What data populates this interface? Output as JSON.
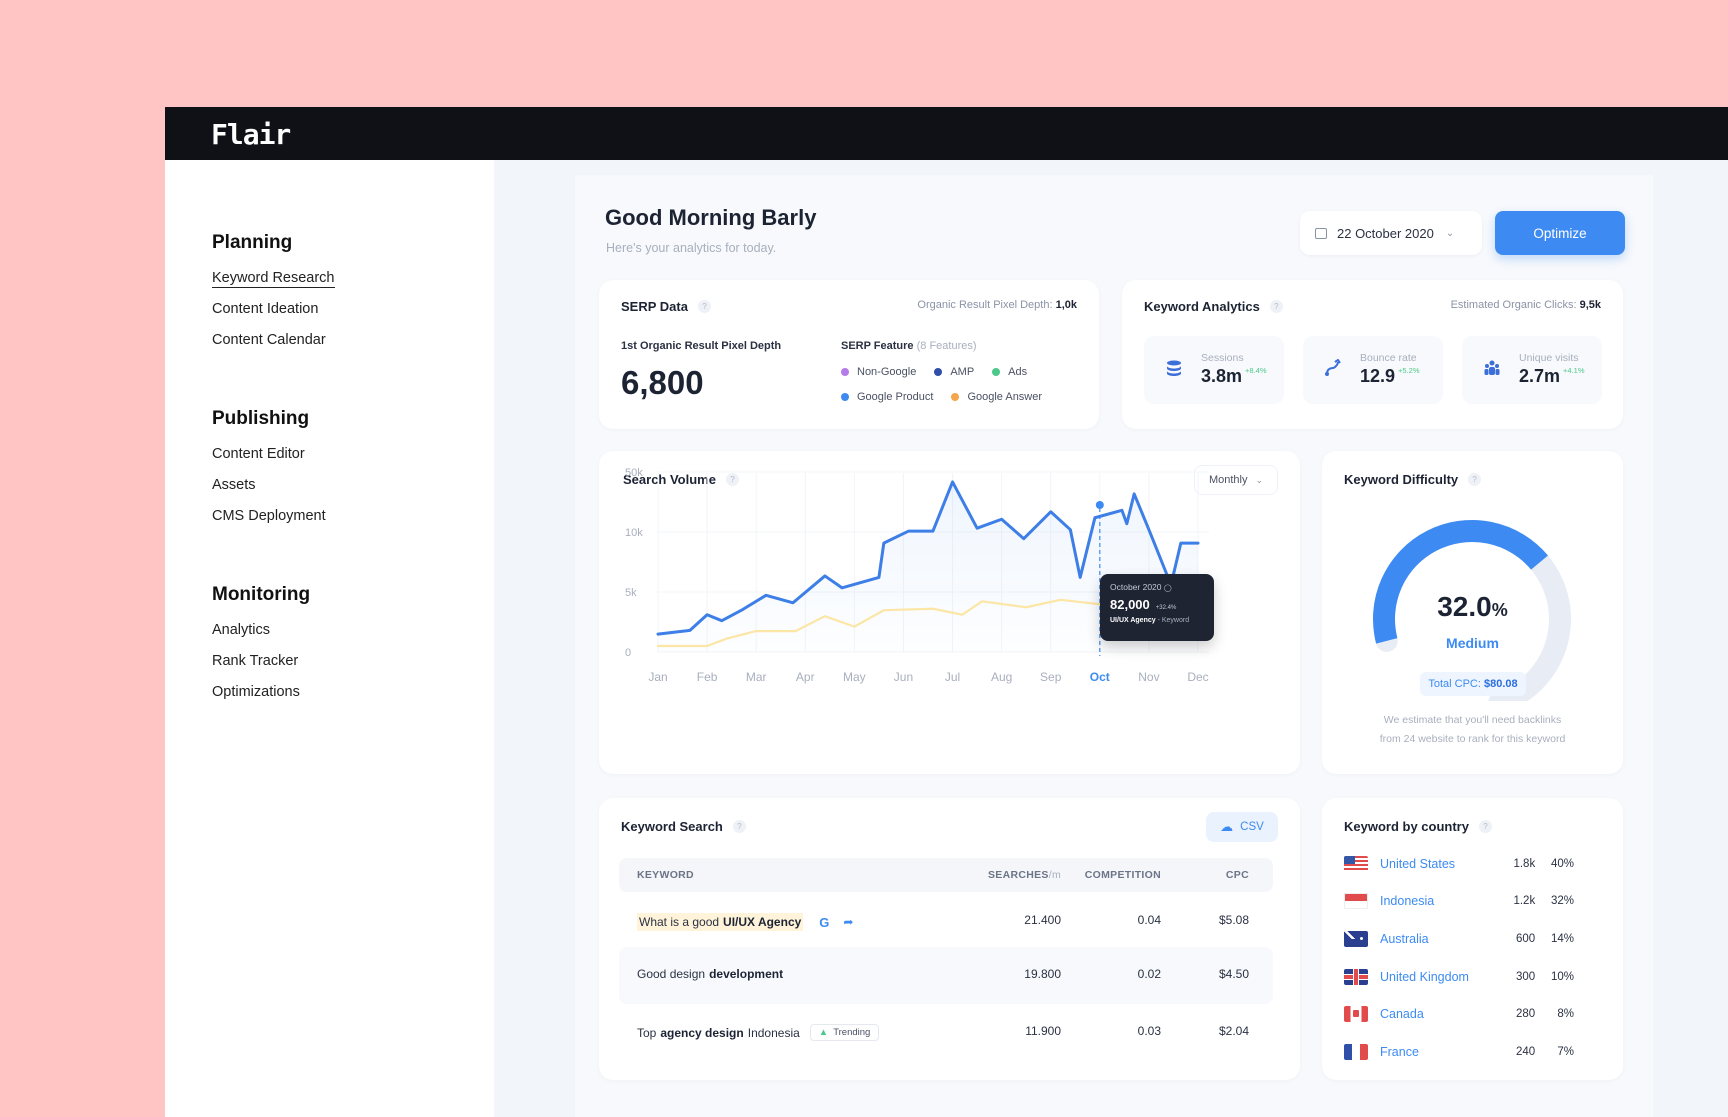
{
  "app": {
    "brand": "Flair"
  },
  "sidebar": {
    "sections": [
      {
        "title": "Planning",
        "items": [
          "Keyword Research",
          "Content Ideation",
          "Content Calendar"
        ]
      },
      {
        "title": "Publishing",
        "items": [
          "Content Editor",
          "Assets",
          "CMS Deployment"
        ]
      },
      {
        "title": "Monitoring",
        "items": [
          "Analytics",
          "Rank Tracker",
          "Optimizations"
        ]
      }
    ]
  },
  "header": {
    "greeting": "Good Morning Barly",
    "subtitle": "Here's your analytics for today.",
    "date": "22 October 2020",
    "optimize_label": "Optimize"
  },
  "serp": {
    "title": "SERP Data",
    "meta_label": "Organic Result Pixel Depth:",
    "meta_value": "1,0k",
    "depth_label": "1st Organic Result Pixel Depth",
    "depth_value": "6,800",
    "feature_title": "SERP Feature",
    "feature_count": "(8 Features)",
    "features": [
      {
        "name": "Non-Google",
        "color": "#b57be8"
      },
      {
        "name": "AMP",
        "color": "#2f4fa8"
      },
      {
        "name": "Ads",
        "color": "#4cc98a"
      },
      {
        "name": "Google Product",
        "color": "#3d8bf2"
      },
      {
        "name": "Google Answer",
        "color": "#f5a54a"
      }
    ]
  },
  "keyword_analytics": {
    "title": "Keyword Analytics",
    "meta_label": "Estimated Organic Clicks:",
    "meta_value": "9,5k",
    "tiles": [
      {
        "label": "Sessions",
        "value": "3.8m",
        "change": "+8.4%",
        "icon": "database-icon"
      },
      {
        "label": "Bounce rate",
        "value": "12.9",
        "change": "+5.2%",
        "icon": "bounce-arrow-icon"
      },
      {
        "label": "Unique visits",
        "value": "2.7m",
        "change": "+4.1%",
        "icon": "users-icon"
      }
    ]
  },
  "search_volume": {
    "title": "Search Volume",
    "period": "Monthly",
    "tooltip": {
      "date": "October 2020",
      "value": "82,000",
      "change": "+32.4%",
      "keyword_bold": "UI/UX Agency",
      "keyword_rest": "- Keyword"
    }
  },
  "chart_data": {
    "type": "line",
    "categories": [
      "Jan",
      "Feb",
      "Mar",
      "Apr",
      "May",
      "Jun",
      "Jul",
      "Aug",
      "Sep",
      "Oct",
      "Nov",
      "Dec"
    ],
    "y_ticks": [
      "0",
      "5k",
      "10k",
      "50k"
    ],
    "highlight_category": "Oct",
    "series": [
      {
        "color": "#3d7fe6",
        "points": [
          [
            0,
            1.2
          ],
          [
            0.65,
            1.45
          ],
          [
            1,
            2.5
          ],
          [
            1.3,
            2.1
          ],
          [
            1.7,
            2.8
          ],
          [
            2.2,
            3.8
          ],
          [
            2.75,
            3.3
          ],
          [
            3.4,
            5.1
          ],
          [
            3.75,
            4.3
          ],
          [
            4.5,
            5.0
          ],
          [
            4.6,
            7.3
          ],
          [
            5.1,
            8.1
          ],
          [
            5.6,
            8.1
          ],
          [
            6.0,
            11.4
          ],
          [
            6.5,
            8.3
          ],
          [
            7.0,
            8.9
          ],
          [
            7.45,
            7.6
          ],
          [
            8.0,
            9.4
          ],
          [
            8.4,
            8.2
          ],
          [
            8.6,
            5.0
          ],
          [
            8.9,
            9.0
          ],
          [
            9.45,
            9.5
          ],
          [
            9.55,
            8.6
          ],
          [
            9.7,
            10.6
          ],
          [
            10.0,
            8.2
          ],
          [
            10.45,
            4.5
          ],
          [
            10.65,
            7.3
          ],
          [
            11.0,
            7.3
          ]
        ]
      },
      {
        "color": "#fce6a5",
        "points": [
          [
            0,
            0.4
          ],
          [
            1,
            0.4
          ],
          [
            1.4,
            0.9
          ],
          [
            2.0,
            1.4
          ],
          [
            2.8,
            1.4
          ],
          [
            3.4,
            2.4
          ],
          [
            4.0,
            1.7
          ],
          [
            4.6,
            2.8
          ],
          [
            5.6,
            2.9
          ],
          [
            6.2,
            2.5
          ],
          [
            6.6,
            3.4
          ],
          [
            7.5,
            3.0
          ],
          [
            8.2,
            3.5
          ],
          [
            9.0,
            3.2
          ],
          [
            9.45,
            2.0
          ],
          [
            9.8,
            3.2
          ],
          [
            10.3,
            3.2
          ],
          [
            10.6,
            2.0
          ],
          [
            11.0,
            3.6
          ]
        ]
      }
    ]
  },
  "keyword_difficulty": {
    "title": "Keyword Difficulty",
    "value": "32.0",
    "unit": "%",
    "level": "Medium",
    "fraction": 0.32,
    "cpc_label": "Total CPC:",
    "cpc_value": "$80.08",
    "note_line1": "We estimate that you'll need backlinks",
    "note_line2": "from 24 website to rank for this keyword"
  },
  "keyword_search": {
    "title": "Keyword Search",
    "csv_label": "CSV",
    "headers": {
      "keyword": "KEYWORD",
      "searches": "SEARCHES",
      "searches_unit": "/m",
      "competition": "COMPETITION",
      "cpc": "CPC"
    },
    "rows": [
      {
        "pre": "What is a good",
        "bold": "UI/UX Agency",
        "post": "",
        "searches": "21.400",
        "competition": "0.04",
        "cpc": "$5.08"
      },
      {
        "pre": "Good design",
        "bold": "development",
        "post": "",
        "searches": "19.800",
        "competition": "0.02",
        "cpc": "$4.50"
      },
      {
        "pre": "Top",
        "bold": "agency design",
        "post": "Indonesia",
        "badge": "Trending",
        "searches": "11.900",
        "competition": "0.03",
        "cpc": "$2.04"
      }
    ]
  },
  "keyword_by_country": {
    "title": "Keyword by country",
    "rows": [
      {
        "country": "United States",
        "count": "1.8k",
        "pct": "40%"
      },
      {
        "country": "Indonesia",
        "count": "1.2k",
        "pct": "32%"
      },
      {
        "country": "Australia",
        "count": "600",
        "pct": "14%"
      },
      {
        "country": "United Kingdom",
        "count": "300",
        "pct": "10%"
      },
      {
        "country": "Canada",
        "count": "280",
        "pct": "8%"
      },
      {
        "country": "France",
        "count": "240",
        "pct": "7%"
      }
    ]
  }
}
